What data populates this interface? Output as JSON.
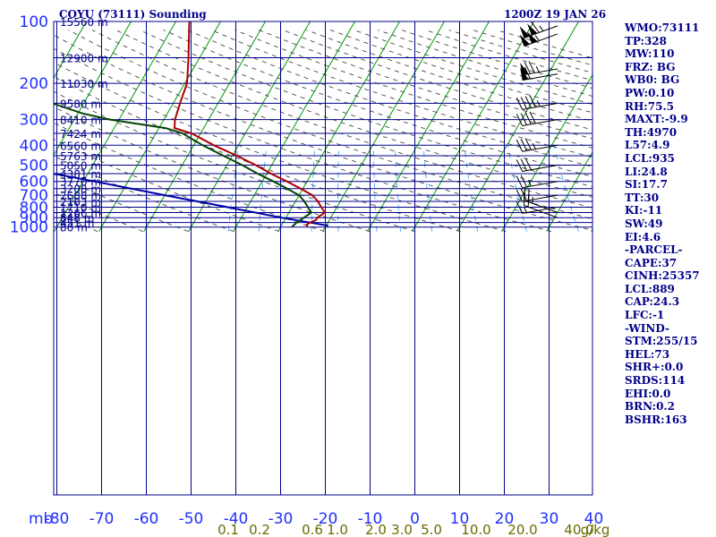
{
  "header": {
    "station_title": "COYU (73111) Sounding",
    "time_title": "1200Z 19 JAN 26"
  },
  "indices": [
    "WMO:73111",
    "TP:328",
    "MW:110",
    "FRZ: BG",
    "WB0: BG",
    "PW:0.10",
    "RH:75.5",
    "MAXT:-9.9",
    "TH:4970",
    "L57:4.9",
    "LCL:935",
    "LI:24.8",
    "SI:17.7",
    "TT:30",
    "KI:-11",
    "SW:49",
    "EI:4.6",
    "-PARCEL-",
    "CAPE:37",
    "CINH:25357",
    "LCL:889",
    "CAP:24.3",
    "LFC:-1",
    "-WIND-",
    "STM:255/15",
    "HEL:73",
    "SHR+:0.0",
    "SRDS:114",
    "EHI:0.0",
    "BRN:0.2",
    "BSHR:163"
  ],
  "colors": {
    "grid": "#00008b",
    "isotherm": "#009900",
    "dry_adiabat": "#333333",
    "mixing_ratio": "#2aa0ff",
    "temperature": "#aa0000",
    "dewpoint": "#004400",
    "parcel": "#0000aa",
    "axis_label": "#2030ff",
    "mixing_label": "#6b6b00",
    "wind_barb": "#000000"
  },
  "chart_data": {
    "type": "skew-t",
    "pressure_levels": [
      100,
      200,
      300,
      400,
      500,
      600,
      700,
      800,
      900,
      1000
    ],
    "height_labels": [
      {
        "p": 100,
        "label": "15560 m"
      },
      {
        "p": 150,
        "label": "12900 m"
      },
      {
        "p": 200,
        "label": "11030 m"
      },
      {
        "p": 250,
        "label": "9580 m"
      },
      {
        "p": 300,
        "label": "8410 m"
      },
      {
        "p": 350,
        "label": "7424 m"
      },
      {
        "p": 400,
        "label": "6560 m"
      },
      {
        "p": 450,
        "label": "5763 m"
      },
      {
        "p": 500,
        "label": "5050 m"
      },
      {
        "p": 550,
        "label": "4381 m"
      },
      {
        "p": 600,
        "label": "3770 m"
      },
      {
        "p": 650,
        "label": "3208 m"
      },
      {
        "p": 700,
        "label": "2688 m"
      },
      {
        "p": 750,
        "label": "2183 m"
      },
      {
        "p": 800,
        "label": "1710 m"
      },
      {
        "p": 850,
        "label": "1266 m"
      },
      {
        "p": 900,
        "label": "848 m"
      },
      {
        "p": 950,
        "label": "451 m"
      },
      {
        "p": 1000,
        "label": "80 m"
      }
    ],
    "temperature_axis": {
      "label": "mb",
      "ticks": [
        -80,
        -70,
        -60,
        -50,
        -40,
        -30,
        -20,
        -10,
        0,
        10,
        20,
        30,
        40
      ],
      "range": [
        -80,
        40
      ]
    },
    "mixing_ratio_labels": [
      "0.1",
      "0.2",
      "0.6",
      "1.0",
      "2.0",
      "3.0",
      "5.0",
      "10.0",
      "20.0",
      "40.0",
      "g/kg"
    ],
    "temperature_profile": [
      {
        "p": 1000,
        "t": -24.0
      },
      {
        "p": 975,
        "t": -24.5
      },
      {
        "p": 950,
        "t": -24.0
      },
      {
        "p": 925,
        "t": -23.0
      },
      {
        "p": 900,
        "t": -23.0
      },
      {
        "p": 875,
        "t": -22.5
      },
      {
        "p": 850,
        "t": -22.0
      },
      {
        "p": 800,
        "t": -23.5
      },
      {
        "p": 750,
        "t": -25.0
      },
      {
        "p": 700,
        "t": -27.0
      },
      {
        "p": 650,
        "t": -30.5
      },
      {
        "p": 600,
        "t": -34.5
      },
      {
        "p": 550,
        "t": -39.0
      },
      {
        "p": 500,
        "t": -43.5
      },
      {
        "p": 450,
        "t": -49.0
      },
      {
        "p": 400,
        "t": -55.5
      },
      {
        "p": 350,
        "t": -62.0
      },
      {
        "p": 330,
        "t": -66.5
      },
      {
        "p": 300,
        "t": -67.5
      },
      {
        "p": 250,
        "t": -68.5
      },
      {
        "p": 200,
        "t": -69.5
      },
      {
        "p": 150,
        "t": -72.5
      },
      {
        "p": 100,
        "t": -77.0
      }
    ],
    "dewpoint_profile": [
      {
        "p": 1000,
        "t": -27.5
      },
      {
        "p": 950,
        "t": -27.0
      },
      {
        "p": 900,
        "t": -26.0
      },
      {
        "p": 850,
        "t": -25.0
      },
      {
        "p": 800,
        "t": -26.5
      },
      {
        "p": 750,
        "t": -28.0
      },
      {
        "p": 700,
        "t": -30.0
      },
      {
        "p": 650,
        "t": -33.5
      },
      {
        "p": 600,
        "t": -37.5
      },
      {
        "p": 550,
        "t": -42.0
      },
      {
        "p": 500,
        "t": -46.5
      },
      {
        "p": 450,
        "t": -52.0
      },
      {
        "p": 400,
        "t": -58.0
      },
      {
        "p": 350,
        "t": -64.0
      },
      {
        "p": 330,
        "t": -68.5
      },
      {
        "p": 300,
        "t": -82.0
      },
      {
        "p": 280,
        "t": -89.0
      },
      {
        "p": 250,
        "t": -97.0
      }
    ],
    "parcel_path": [
      {
        "p": 985,
        "t": -19.5
      },
      {
        "p": 900,
        "t": -31.0
      },
      {
        "p": 800,
        "t": -44.5
      },
      {
        "p": 700,
        "t": -60.0
      },
      {
        "p": 600,
        "t": -77.5
      },
      {
        "p": 500,
        "t": -98.5
      }
    ],
    "wind_barbs": [
      {
        "p": 105,
        "dir": 250,
        "spd": 115
      },
      {
        "p": 115,
        "dir": 250,
        "spd": 105
      },
      {
        "p": 170,
        "dir": 260,
        "spd": 75
      },
      {
        "p": 180,
        "dir": 260,
        "spd": 60
      },
      {
        "p": 250,
        "dir": 260,
        "spd": 45
      },
      {
        "p": 300,
        "dir": 260,
        "spd": 40
      },
      {
        "p": 400,
        "dir": 260,
        "spd": 35
      },
      {
        "p": 500,
        "dir": 260,
        "spd": 30
      },
      {
        "p": 600,
        "dir": 260,
        "spd": 25
      },
      {
        "p": 700,
        "dir": 260,
        "spd": 20
      },
      {
        "p": 800,
        "dir": 260,
        "spd": 15
      },
      {
        "p": 850,
        "dir": 290,
        "spd": 25
      },
      {
        "p": 900,
        "dir": 290,
        "spd": 20
      }
    ]
  }
}
